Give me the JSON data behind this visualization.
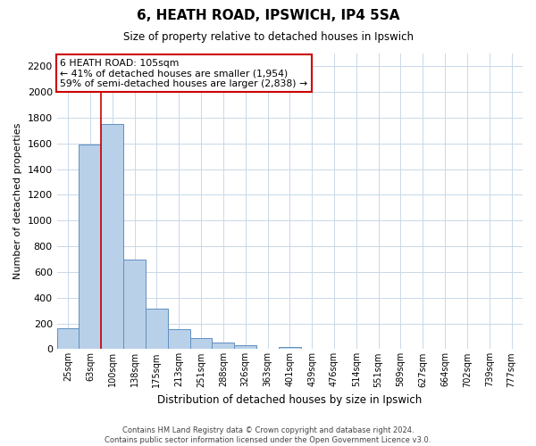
{
  "title": "6, HEATH ROAD, IPSWICH, IP4 5SA",
  "subtitle": "Size of property relative to detached houses in Ipswich",
  "xlabel": "Distribution of detached houses by size in Ipswich",
  "ylabel": "Number of detached properties",
  "footer_line1": "Contains HM Land Registry data © Crown copyright and database right 2024.",
  "footer_line2": "Contains public sector information licensed under the Open Government Licence v3.0.",
  "bar_labels": [
    "25sqm",
    "63sqm",
    "100sqm",
    "138sqm",
    "175sqm",
    "213sqm",
    "251sqm",
    "288sqm",
    "326sqm",
    "363sqm",
    "401sqm",
    "439sqm",
    "476sqm",
    "514sqm",
    "551sqm",
    "589sqm",
    "627sqm",
    "664sqm",
    "702sqm",
    "739sqm",
    "777sqm"
  ],
  "bar_values": [
    160,
    1590,
    1755,
    700,
    315,
    155,
    85,
    50,
    30,
    0,
    20,
    0,
    0,
    0,
    0,
    0,
    0,
    0,
    0,
    0,
    0
  ],
  "bar_color": "#b8d0e8",
  "bar_edge_color": "#6090c0",
  "ylim": [
    0,
    2300
  ],
  "yticks": [
    0,
    200,
    400,
    600,
    800,
    1000,
    1200,
    1400,
    1600,
    1800,
    2000,
    2200
  ],
  "property_line_x": 1.5,
  "annotation_title": "6 HEATH ROAD: 105sqm",
  "annotation_line1": "← 41% of detached houses are smaller (1,954)",
  "annotation_line2": "59% of semi-detached houses are larger (2,838) →",
  "annotation_box_color": "#ffffff",
  "annotation_box_edge": "#cc0000",
  "property_line_color": "#cc0000",
  "grid_color": "#c8d8e8",
  "background_color": "#ffffff"
}
